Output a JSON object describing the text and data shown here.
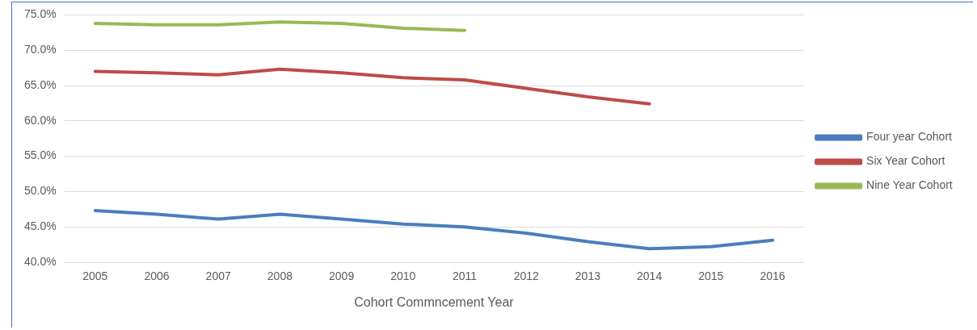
{
  "chart_data": {
    "type": "line",
    "xlabel": "Cohort Commncement Year",
    "categories": [
      "2005",
      "2006",
      "2007",
      "2008",
      "2009",
      "2010",
      "2011",
      "2012",
      "2013",
      "2014",
      "2015",
      "2016"
    ],
    "series": [
      {
        "name": "Four year Cohort",
        "color": "#4a7ebb",
        "values": [
          47.3,
          46.8,
          46.1,
          46.8,
          46.1,
          45.4,
          45.0,
          44.1,
          42.9,
          41.9,
          42.2,
          43.1
        ]
      },
      {
        "name": "Six Year Cohort",
        "color": "#be4b48",
        "values": [
          67.0,
          66.8,
          66.5,
          67.3,
          66.8,
          66.1,
          65.8,
          64.6,
          63.4,
          62.4,
          null,
          null
        ]
      },
      {
        "name": "Nine Year Cohort",
        "color": "#98b954",
        "values": [
          73.8,
          73.6,
          73.6,
          74.0,
          73.8,
          73.1,
          72.8,
          null,
          null,
          null,
          null,
          null
        ]
      }
    ],
    "ylim": [
      40,
      75
    ],
    "yticks": [
      {
        "value": 40,
        "label": "40.0%"
      },
      {
        "value": 45,
        "label": "45.0%"
      },
      {
        "value": 50,
        "label": "50.0%"
      },
      {
        "value": 55,
        "label": "55.0%"
      },
      {
        "value": 60,
        "label": "60.0%"
      },
      {
        "value": 65,
        "label": "65.0%"
      },
      {
        "value": 70,
        "label": "70.0%"
      },
      {
        "value": 75,
        "label": "75.0%"
      }
    ],
    "grid": "y",
    "legend": "right",
    "marker": "none",
    "line_style": "solid"
  }
}
